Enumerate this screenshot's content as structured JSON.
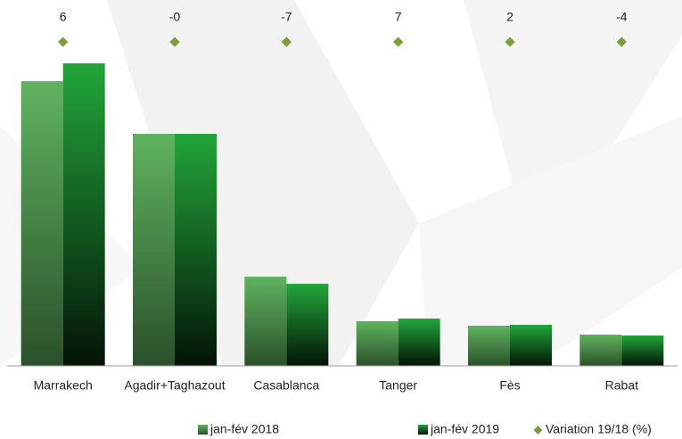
{
  "chart_data": {
    "type": "bar",
    "categories": [
      "Marrakech",
      "Agadir+Taghazout",
      "Casablanca",
      "Tanger",
      "Fès",
      "Rabat"
    ],
    "series": [
      {
        "name": "jan-fév 2018",
        "color": "#5fb35f",
        "values": [
          319,
          260,
          100,
          50,
          45,
          35
        ]
      },
      {
        "name": "jan-fév 2019",
        "color": "#22a63a",
        "values": [
          339,
          260,
          92,
          53,
          46,
          34
        ]
      }
    ],
    "variation": {
      "name": "Variation 19/18 (%)",
      "color": "#7c9f3e",
      "values": [
        6,
        -0.2,
        -7,
        7,
        2,
        -4
      ],
      "value_labels": [
        "6",
        "-0",
        "-7",
        "7",
        "2",
        "-4"
      ]
    },
    "ylim": [
      0,
      370
    ]
  }
}
